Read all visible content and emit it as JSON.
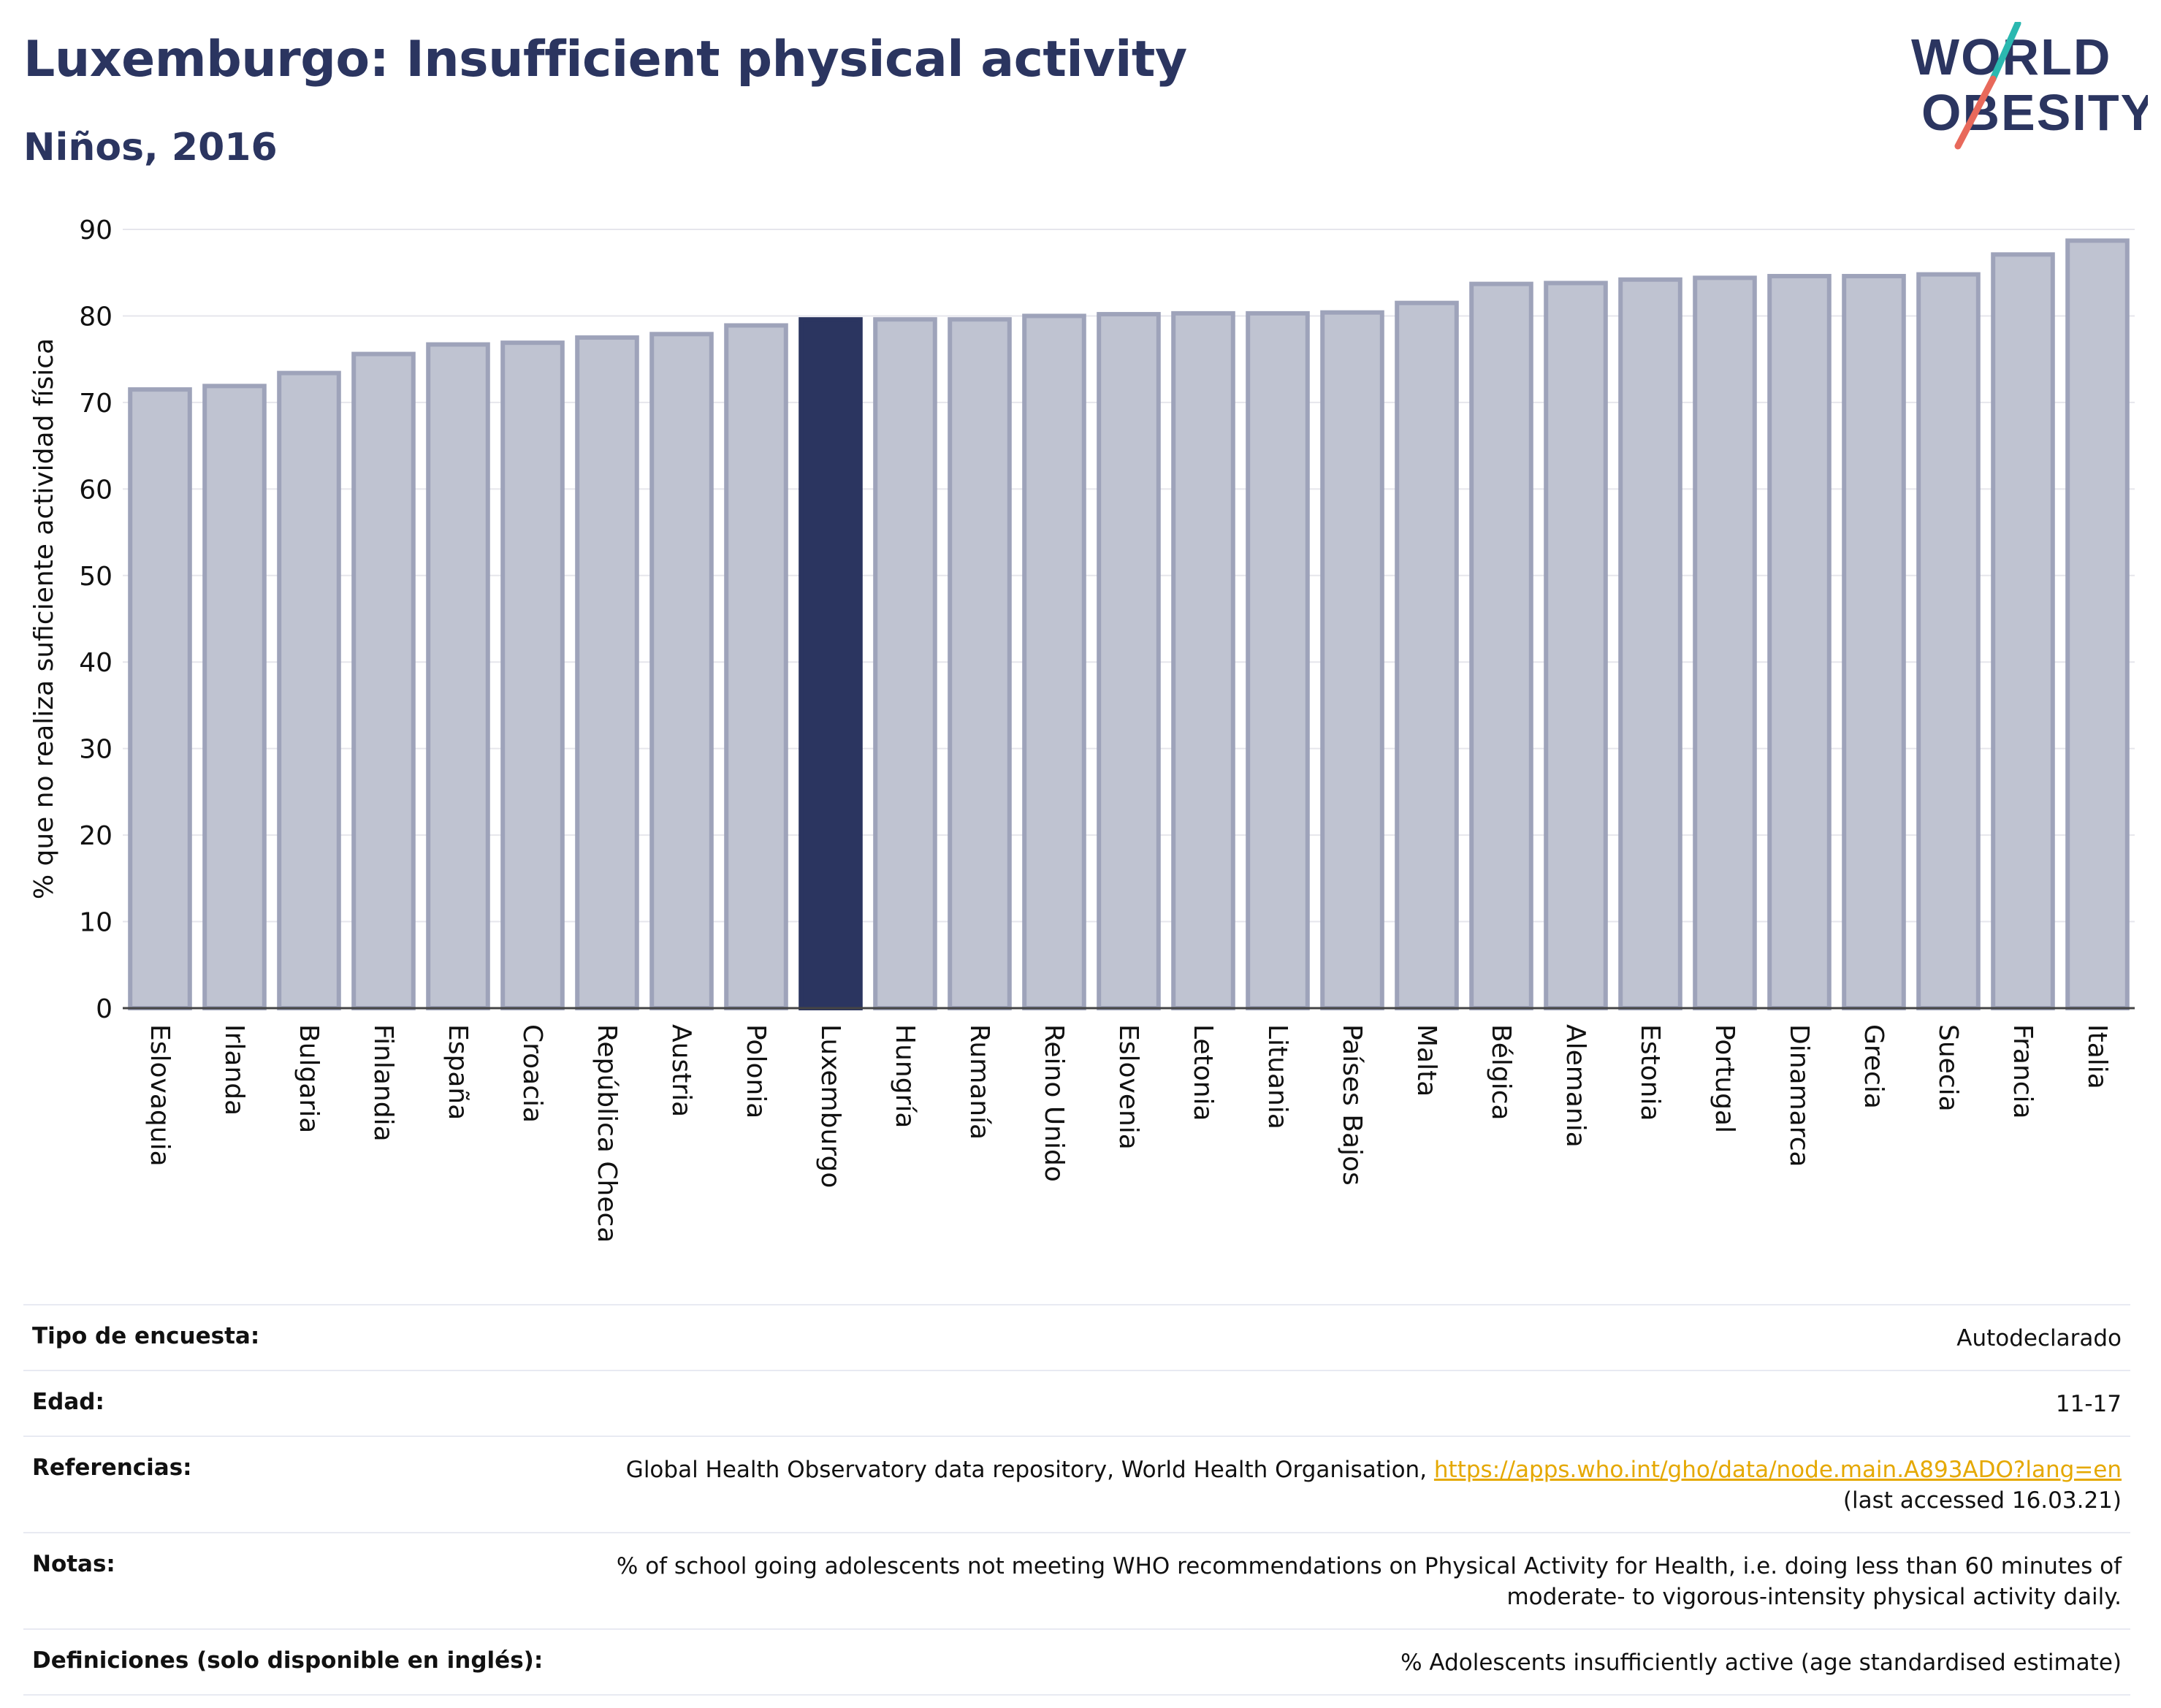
{
  "header": {
    "title": "Luxemburgo: Insufficient physical activity",
    "subtitle": "Niños, 2016"
  },
  "logo": {
    "line1": "WORLD",
    "line2": "OBESITY"
  },
  "colors": {
    "highlight": "#2b3560",
    "bar": "#bfc3d1",
    "bar_edge": "#9ea3ba",
    "title": "#2b3560",
    "link": "#e5a800"
  },
  "chart_data": {
    "type": "bar",
    "title": "Luxemburgo: Insufficient physical activity",
    "subtitle": "Niños, 2016",
    "xlabel": "",
    "ylabel": "% que no realiza suficiente actividad física",
    "ylim": [
      0,
      90
    ],
    "yticks": [
      0,
      10,
      20,
      30,
      40,
      50,
      60,
      70,
      80,
      90
    ],
    "grid": true,
    "highlight": "Luxemburgo",
    "categories": [
      "Eslovaquia",
      "Irlanda",
      "Bulgaria",
      "Finlandia",
      "España",
      "Croacia",
      "República Checa",
      "Austria",
      "Polonia",
      "Luxemburgo",
      "Hungría",
      "Rumanía",
      "Reino Unido",
      "Eslovenia",
      "Letonia",
      "Lituania",
      "Países Bajos",
      "Malta",
      "Bélgica",
      "Alemania",
      "Estonia",
      "Portugal",
      "Dinamarca",
      "Grecia",
      "Suecia",
      "Francia",
      "Italia"
    ],
    "values": [
      71.5,
      71.9,
      73.4,
      75.6,
      76.7,
      76.9,
      77.5,
      77.9,
      78.9,
      79.6,
      79.6,
      79.6,
      80.0,
      80.2,
      80.3,
      80.3,
      80.4,
      81.5,
      83.7,
      83.8,
      84.2,
      84.4,
      84.6,
      84.6,
      84.8,
      87.1,
      88.7
    ]
  },
  "info": {
    "survey_label": "Tipo de encuesta:",
    "survey_value": "Autodeclarado",
    "age_label": "Edad:",
    "age_value": "11-17",
    "refs_label": "Referencias:",
    "refs_text": "Global Health Observatory data repository, World Health Organisation, ",
    "refs_link": "https://apps.who.int/gho/data/node.main.A893ADO?lang=en",
    "refs_accessed": "(last accessed 16.03.21)",
    "notes_label": "Notas:",
    "notes_value": "% of school going adolescents not meeting WHO recommendations on Physical Activity for Health, i.e. doing less than 60 minutes of moderate- to vigorous-intensity physical activity daily.",
    "defs_label": "Definiciones (solo disponible en inglés):",
    "defs_value": "% Adolescents insufficiently active (age standardised estimate)"
  }
}
